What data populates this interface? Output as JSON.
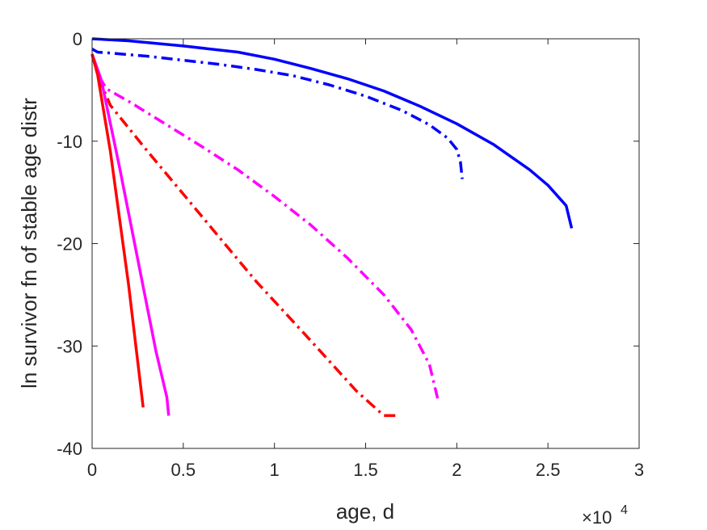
{
  "chart_data": {
    "type": "line",
    "title": "",
    "xlabel": "age, d",
    "ylabel": "ln survivor fn of stable age distr",
    "x_multiplier_label": "×10",
    "x_multiplier_exponent": "4",
    "xlim": [
      0,
      30000
    ],
    "ylim": [
      -40,
      0
    ],
    "xticks": [
      0,
      5000,
      10000,
      15000,
      20000,
      25000,
      30000
    ],
    "xtick_labels": [
      "0",
      "0.5",
      "1",
      "1.5",
      "2",
      "2.5",
      "3"
    ],
    "yticks": [
      0,
      -10,
      -20,
      -30,
      -40
    ],
    "ytick_labels": [
      "0",
      "-10",
      "-20",
      "-30",
      "-40"
    ],
    "grid": false,
    "legend": "none",
    "series": [
      {
        "color": "#0000ff",
        "style": "solid",
        "points": [
          [
            0,
            0
          ],
          [
            2000,
            -0.2
          ],
          [
            5000,
            -0.7
          ],
          [
            8000,
            -1.3
          ],
          [
            10000,
            -2.0
          ],
          [
            12000,
            -2.9
          ],
          [
            14000,
            -3.9
          ],
          [
            16000,
            -5.1
          ],
          [
            18000,
            -6.6
          ],
          [
            20000,
            -8.3
          ],
          [
            22000,
            -10.3
          ],
          [
            24000,
            -12.8
          ],
          [
            25000,
            -14.3
          ],
          [
            26000,
            -16.3
          ],
          [
            26300,
            -18.5
          ]
        ]
      },
      {
        "color": "#0000ff",
        "style": "dashdot",
        "points": [
          [
            0,
            -1.0
          ],
          [
            300,
            -1.3
          ],
          [
            1000,
            -1.4
          ],
          [
            3000,
            -1.7
          ],
          [
            5000,
            -2.1
          ],
          [
            7000,
            -2.5
          ],
          [
            9000,
            -3.0
          ],
          [
            11000,
            -3.6
          ],
          [
            13000,
            -4.5
          ],
          [
            15000,
            -5.6
          ],
          [
            17000,
            -7.0
          ],
          [
            18500,
            -8.4
          ],
          [
            19500,
            -9.7
          ],
          [
            20000,
            -10.8
          ],
          [
            20200,
            -12.0
          ],
          [
            20300,
            -13.7
          ]
        ]
      },
      {
        "color": "#ff00ff",
        "style": "dashdot",
        "points": [
          [
            0,
            -1.5
          ],
          [
            300,
            -3.5
          ],
          [
            800,
            -4.9
          ],
          [
            2000,
            -6.1
          ],
          [
            4000,
            -8.3
          ],
          [
            6000,
            -10.5
          ],
          [
            8000,
            -12.8
          ],
          [
            10000,
            -15.4
          ],
          [
            12000,
            -18.2
          ],
          [
            14000,
            -21.4
          ],
          [
            16000,
            -25.0
          ],
          [
            17500,
            -28.4
          ],
          [
            18500,
            -31.8
          ],
          [
            19000,
            -35.5
          ]
        ]
      },
      {
        "color": "#ff0000",
        "style": "dashdot",
        "points": [
          [
            0,
            -1.5
          ],
          [
            400,
            -4.0
          ],
          [
            1000,
            -6.5
          ],
          [
            3000,
            -10.9
          ],
          [
            6000,
            -17.3
          ],
          [
            9000,
            -23.7
          ],
          [
            12000,
            -29.5
          ],
          [
            14500,
            -34.4
          ],
          [
            16000,
            -36.8
          ],
          [
            16700,
            -36.8
          ]
        ]
      },
      {
        "color": "#ff00ff",
        "style": "solid",
        "points": [
          [
            0,
            -1.5
          ],
          [
            500,
            -4.0
          ],
          [
            1500,
            -12.5
          ],
          [
            2500,
            -21.5
          ],
          [
            3500,
            -30.5
          ],
          [
            4100,
            -35.0
          ],
          [
            4200,
            -36.8
          ]
        ]
      },
      {
        "color": "#ff0000",
        "style": "solid",
        "points": [
          [
            0,
            -1.5
          ],
          [
            300,
            -3.5
          ],
          [
            1000,
            -11.0
          ],
          [
            2000,
            -24.0
          ],
          [
            2800,
            -36.0
          ]
        ]
      }
    ]
  }
}
